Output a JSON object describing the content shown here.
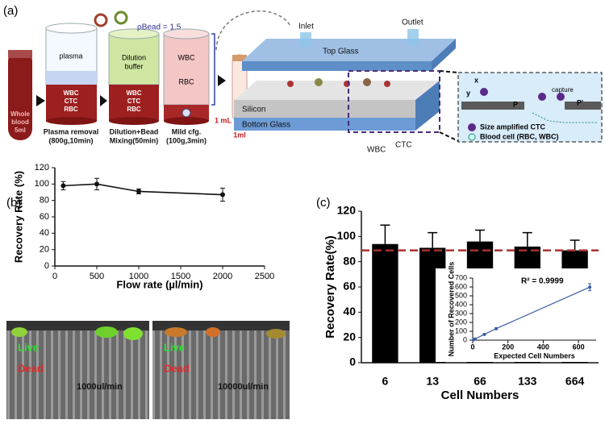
{
  "panel_a": {
    "label": "(a)",
    "tube_label": [
      "Whole",
      "blood",
      "5ml"
    ],
    "steps": [
      {
        "top": "plasma",
        "bottom": [
          "WBC",
          "CTC",
          "RBC"
        ],
        "caption": [
          "Plasma removal",
          "(800g,10min)"
        ]
      },
      {
        "top": [
          "Dilution",
          "buffer"
        ],
        "bottom": [
          "WBC",
          "CTC",
          "RBC"
        ],
        "caption": [
          "Dilution+Bead",
          "Mixing(50min)"
        ]
      },
      {
        "top": "WBC",
        "middle": "RBC",
        "caption": [
          "Mild cfg.",
          "(100g,3min)"
        ]
      }
    ],
    "bead_density": "ρBead = 1.5",
    "volume": "1 mL",
    "final_tube": "1ml",
    "device": {
      "inlet": "Inlet",
      "outlet": "Outlet",
      "top_glass": "Top Glass",
      "silicon": "Silicon",
      "bottom_glass": "Bottom Glass",
      "wbc": "WBC",
      "ctc": "CTC"
    },
    "zoom": {
      "x_axis": "x",
      "y_axis": "y",
      "p": "P",
      "p_prime": "P'",
      "capture": "capture",
      "legend": [
        "Size amplified CTC",
        "Blood cell (RBC, WBC)"
      ]
    }
  },
  "images": [
    {
      "live": "Live",
      "dead": "Dead",
      "rate": "1000ul/min"
    },
    {
      "live": "Live",
      "dead": "Dead",
      "rate": "10000ul/min"
    }
  ],
  "chart_data": [
    {
      "type": "line",
      "panel_label": "(b)",
      "x_label": "Flow rate (µl/min)",
      "y_label": "Recovery Rate (%)",
      "x": [
        100,
        500,
        1000,
        2000
      ],
      "series": [
        {
          "color": "#111111",
          "values": [
            98,
            100,
            91,
            87
          ],
          "errors": [
            5,
            7,
            3,
            8
          ]
        }
      ],
      "xlim": [
        0,
        2500
      ],
      "xticks": [
        0,
        500,
        1000,
        1500,
        2000,
        2500
      ],
      "ylim": [
        0,
        120
      ],
      "yticks": [
        0,
        20,
        40,
        60,
        80,
        100,
        120
      ]
    },
    {
      "type": "bar",
      "panel_label": "(c)",
      "x_label": "Cell Numbers",
      "y_label": "Recovery Rate(%)",
      "categories": [
        "6",
        "13",
        "66",
        "133",
        "664"
      ],
      "values": [
        94,
        91,
        96,
        92,
        89
      ],
      "errors": [
        15,
        12,
        9,
        11,
        8
      ],
      "color": "#000000",
      "reference_line": {
        "value": 89,
        "color": "#a83232"
      },
      "ylim": [
        0,
        120
      ],
      "yticks": [
        0,
        20,
        40,
        60,
        80,
        100,
        120
      ]
    },
    {
      "type": "line",
      "x_label": "Expected Cell Numbers",
      "y_label": "Number of Recovered Cells",
      "annotation": "R² = 0.9999",
      "x": [
        6,
        13,
        66,
        133,
        664
      ],
      "series": [
        {
          "color": "#3a5ea8",
          "values": [
            6,
            13,
            65,
            130,
            598
          ],
          "errors": [
            2,
            3,
            5,
            10,
            40
          ]
        }
      ],
      "xlim": [
        0,
        700
      ],
      "xticks": [
        0,
        200,
        400,
        600
      ],
      "ylim": [
        0,
        700
      ],
      "yticks": [
        0,
        100,
        200,
        300,
        400,
        500,
        600,
        700
      ]
    }
  ]
}
